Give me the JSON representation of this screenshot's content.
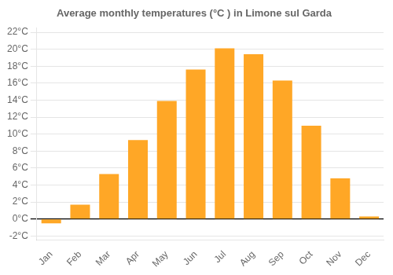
{
  "chart_data": {
    "type": "bar",
    "title": "Average monthly temperatures (°C ) in Limone sul Garda",
    "categories": [
      "Jan",
      "Feb",
      "Mar",
      "Apr",
      "May",
      "Jun",
      "Jul",
      "Aug",
      "Sep",
      "Oct",
      "Nov",
      "Dec"
    ],
    "values": [
      -0.5,
      1.7,
      5.3,
      9.3,
      13.9,
      17.6,
      20.1,
      19.4,
      16.3,
      11.0,
      4.8,
      0.3
    ],
    "color": "#FFA726",
    "ylim": [
      -2.5,
      22.5
    ],
    "yticks": [
      {
        "value": -2,
        "label": "-2°C"
      },
      {
        "value": 0,
        "label": "0°C"
      },
      {
        "value": 2,
        "label": "2°C"
      },
      {
        "value": 4,
        "label": "4°C"
      },
      {
        "value": 6,
        "label": "6°C"
      },
      {
        "value": 8,
        "label": "8°C"
      },
      {
        "value": 10,
        "label": "10°C"
      },
      {
        "value": 12,
        "label": "12°C"
      },
      {
        "value": 14,
        "label": "14°C"
      },
      {
        "value": 16,
        "label": "16°C"
      },
      {
        "value": 18,
        "label": "18°C"
      },
      {
        "value": 20,
        "label": "20°C"
      },
      {
        "value": 22,
        "label": "22°C"
      }
    ],
    "grid": true
  }
}
